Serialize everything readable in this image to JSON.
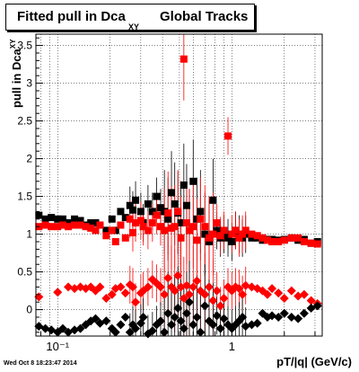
{
  "title": {
    "main": "Fitted pull in Dca",
    "subscript": "XY",
    "rest": "Global Tracks"
  },
  "axes": {
    "ylabel": "pull in Dca",
    "ylabel_sub": "XY",
    "xlabel": "pT/|q| (GeV/c)",
    "y_ticks": [
      "0",
      "0.5",
      "1",
      "1.5",
      "2",
      "2.5",
      "3",
      "3.5"
    ],
    "x_ticks": [
      "10⁻¹",
      "1"
    ]
  },
  "timestamp": "Wed Oct  8 18:23:47 2014",
  "colors": {
    "black_series": "#000000",
    "red_series": "#ff0000",
    "grid": "#000000"
  },
  "chart_data": {
    "type": "scatter",
    "x_scale": "log",
    "xlim": [
      0.075,
      3.3
    ],
    "ylim": [
      -0.35,
      3.65
    ],
    "grid": true,
    "series": [
      {
        "color": "#000000",
        "marker": "square",
        "points": [
          [
            0.078,
            1.25
          ],
          [
            0.085,
            1.2
          ],
          [
            0.092,
            1.22
          ],
          [
            0.1,
            1.2
          ],
          [
            0.107,
            1.2
          ],
          [
            0.115,
            1.15
          ],
          [
            0.125,
            1.2
          ],
          [
            0.135,
            1.18
          ],
          [
            0.145,
            1.12
          ],
          [
            0.155,
            1.15
          ],
          [
            0.165,
            1.15
          ],
          [
            0.175,
            1.12
          ],
          [
            0.19,
            1.05
          ],
          [
            0.205,
            1.2
          ],
          [
            0.215,
            1.05
          ],
          [
            0.23,
            1.3
          ],
          [
            0.245,
            1.22
          ],
          [
            0.26,
            1.38
          ],
          [
            0.27,
            1.32
          ],
          [
            0.28,
            1.45
          ],
          [
            0.3,
            1.3
          ],
          [
            0.31,
            1.15
          ],
          [
            0.33,
            1.4
          ],
          [
            0.35,
            1.3
          ],
          [
            0.37,
            1.5
          ],
          [
            0.39,
            1.35
          ],
          [
            0.41,
            1.3
          ],
          [
            0.43,
            1.2
          ],
          [
            0.45,
            1.55
          ],
          [
            0.47,
            1.4
          ],
          [
            0.49,
            1.28
          ],
          [
            0.51,
            1.15
          ],
          [
            0.53,
            1.65
          ],
          [
            0.55,
            1.38
          ],
          [
            0.57,
            1.05
          ],
          [
            0.6,
            1.7
          ],
          [
            0.63,
            1.2
          ],
          [
            0.66,
            1.3
          ],
          [
            0.7,
            1.0
          ],
          [
            0.74,
            0.9
          ],
          [
            0.78,
            1.45
          ],
          [
            0.82,
            1.05
          ],
          [
            0.86,
            0.95
          ],
          [
            0.9,
            1.0
          ],
          [
            0.95,
            0.95
          ],
          [
            1.0,
            0.9
          ],
          [
            1.05,
            1.05
          ],
          [
            1.1,
            1.0
          ],
          [
            1.15,
            0.95
          ],
          [
            1.2,
            1.0
          ],
          [
            1.3,
            0.95
          ],
          [
            1.4,
            0.95
          ],
          [
            1.5,
            0.92
          ],
          [
            1.6,
            0.93
          ],
          [
            1.7,
            0.93
          ],
          [
            1.85,
            0.92
          ],
          [
            2.0,
            0.93
          ],
          [
            2.2,
            0.95
          ],
          [
            2.4,
            0.92
          ],
          [
            2.6,
            0.93
          ],
          [
            2.85,
            0.88
          ],
          [
            3.1,
            0.9
          ]
        ]
      },
      {
        "color": "#ff0000",
        "marker": "square",
        "points": [
          [
            0.078,
            1.1
          ],
          [
            0.085,
            1.12
          ],
          [
            0.092,
            1.1
          ],
          [
            0.1,
            1.1
          ],
          [
            0.107,
            1.12
          ],
          [
            0.115,
            1.1
          ],
          [
            0.125,
            1.12
          ],
          [
            0.135,
            1.12
          ],
          [
            0.145,
            1.1
          ],
          [
            0.155,
            1.08
          ],
          [
            0.165,
            1.05
          ],
          [
            0.175,
            1.12
          ],
          [
            0.19,
            0.98
          ],
          [
            0.205,
            1.05
          ],
          [
            0.215,
            0.9
          ],
          [
            0.23,
            1.12
          ],
          [
            0.245,
            0.95
          ],
          [
            0.26,
            1.2
          ],
          [
            0.27,
            1.02
          ],
          [
            0.28,
            1.15
          ],
          [
            0.3,
            1.18
          ],
          [
            0.31,
            1.1
          ],
          [
            0.33,
            1.05
          ],
          [
            0.35,
            1.15
          ],
          [
            0.37,
            1.25
          ],
          [
            0.39,
            1.1
          ],
          [
            0.41,
            1.05
          ],
          [
            0.43,
            1.28
          ],
          [
            0.45,
            1.08
          ],
          [
            0.47,
            1.1
          ],
          [
            0.49,
            1.3
          ],
          [
            0.51,
            0.95
          ],
          [
            0.53,
            3.32
          ],
          [
            0.55,
            1.15
          ],
          [
            0.57,
            1.05
          ],
          [
            0.6,
            1.1
          ],
          [
            0.63,
            0.92
          ],
          [
            0.66,
            1.2
          ],
          [
            0.7,
            1.1
          ],
          [
            0.74,
            0.95
          ],
          [
            0.78,
            1.0
          ],
          [
            0.82,
            1.15
          ],
          [
            0.86,
            0.98
          ],
          [
            0.9,
            1.05
          ],
          [
            0.95,
            2.3
          ],
          [
            1.0,
            1.0
          ],
          [
            1.05,
            1.05
          ],
          [
            1.1,
            0.95
          ],
          [
            1.15,
            1.0
          ],
          [
            1.2,
            1.05
          ],
          [
            1.3,
            1.0
          ],
          [
            1.4,
            0.98
          ],
          [
            1.5,
            0.95
          ],
          [
            1.6,
            0.92
          ],
          [
            1.7,
            0.9
          ],
          [
            1.85,
            0.9
          ],
          [
            2.0,
            0.92
          ],
          [
            2.2,
            0.95
          ],
          [
            2.4,
            0.95
          ],
          [
            2.6,
            0.9
          ],
          [
            2.85,
            0.88
          ],
          [
            3.1,
            0.87
          ]
        ]
      },
      {
        "color": "#ff0000",
        "marker": "diamond",
        "points": [
          [
            0.078,
            0.17
          ],
          [
            0.1,
            0.23
          ],
          [
            0.115,
            0.3
          ],
          [
            0.125,
            0.28
          ],
          [
            0.135,
            0.3
          ],
          [
            0.145,
            0.28
          ],
          [
            0.155,
            0.3
          ],
          [
            0.165,
            0.25
          ],
          [
            0.175,
            0.3
          ],
          [
            0.19,
            0.15
          ],
          [
            0.205,
            0.2
          ],
          [
            0.215,
            0.28
          ],
          [
            0.23,
            0.3
          ],
          [
            0.245,
            0.22
          ],
          [
            0.26,
            0.33
          ],
          [
            0.27,
            0.3
          ],
          [
            0.28,
            0.1
          ],
          [
            0.3,
            0.22
          ],
          [
            0.31,
            0.25
          ],
          [
            0.33,
            0.3
          ],
          [
            0.35,
            0.4
          ],
          [
            0.37,
            0.35
          ],
          [
            0.39,
            0.3
          ],
          [
            0.41,
            0.2
          ],
          [
            0.43,
            0.42
          ],
          [
            0.45,
            0.3
          ],
          [
            0.47,
            0.25
          ],
          [
            0.49,
            0.45
          ],
          [
            0.51,
            0.3
          ],
          [
            0.53,
            0.15
          ],
          [
            0.55,
            0.32
          ],
          [
            0.57,
            0.2
          ],
          [
            0.6,
            0.3
          ],
          [
            0.63,
            0.38
          ],
          [
            0.66,
            0.25
          ],
          [
            0.7,
            0.2
          ],
          [
            0.74,
            0.3
          ],
          [
            0.78,
            0.12
          ],
          [
            0.82,
            0.25
          ],
          [
            0.86,
            0.05
          ],
          [
            0.9,
            0.15
          ],
          [
            0.95,
            0.3
          ],
          [
            1.0,
            0.25
          ],
          [
            1.05,
            0.3
          ],
          [
            1.1,
            0.28
          ],
          [
            1.15,
            0.2
          ],
          [
            1.2,
            0.32
          ],
          [
            1.3,
            0.3
          ],
          [
            1.4,
            0.28
          ],
          [
            1.5,
            0.25
          ],
          [
            1.6,
            0.2
          ],
          [
            1.7,
            0.28
          ],
          [
            1.85,
            0.22
          ],
          [
            2.0,
            0.15
          ],
          [
            2.2,
            0.25
          ],
          [
            2.4,
            0.18
          ],
          [
            2.6,
            0.2
          ],
          [
            2.85,
            0.12
          ],
          [
            3.1,
            0.08
          ]
        ]
      },
      {
        "color": "#000000",
        "marker": "diamond",
        "points": [
          [
            0.078,
            -0.22
          ],
          [
            0.085,
            -0.25
          ],
          [
            0.092,
            -0.27
          ],
          [
            0.1,
            -0.3
          ],
          [
            0.107,
            -0.25
          ],
          [
            0.115,
            -0.3
          ],
          [
            0.125,
            -0.27
          ],
          [
            0.135,
            -0.25
          ],
          [
            0.145,
            -0.2
          ],
          [
            0.155,
            -0.15
          ],
          [
            0.165,
            -0.12
          ],
          [
            0.175,
            -0.18
          ],
          [
            0.19,
            -0.15
          ],
          [
            0.205,
            -0.25
          ],
          [
            0.215,
            -0.3
          ],
          [
            0.23,
            -0.2
          ],
          [
            0.245,
            -0.1
          ],
          [
            0.26,
            -0.3
          ],
          [
            0.27,
            -0.2
          ],
          [
            0.28,
            -0.25
          ],
          [
            0.3,
            -0.18
          ],
          [
            0.31,
            -0.1
          ],
          [
            0.33,
            -0.32
          ],
          [
            0.35,
            -0.28
          ],
          [
            0.37,
            -0.2
          ],
          [
            0.39,
            -0.15
          ],
          [
            0.41,
            -0.3
          ],
          [
            0.43,
            -0.05
          ],
          [
            0.45,
            -0.2
          ],
          [
            0.47,
            -0.1
          ],
          [
            0.49,
            0.02
          ],
          [
            0.51,
            -0.15
          ],
          [
            0.53,
            -0.25
          ],
          [
            0.55,
            -0.05
          ],
          [
            0.57,
            0.1
          ],
          [
            0.6,
            -0.2
          ],
          [
            0.63,
            -0.1
          ],
          [
            0.66,
            -0.3
          ],
          [
            0.7,
            0.05
          ],
          [
            0.74,
            -0.15
          ],
          [
            0.78,
            -0.2
          ],
          [
            0.82,
            -0.08
          ],
          [
            0.86,
            -0.25
          ],
          [
            0.9,
            -0.12
          ],
          [
            0.95,
            -0.2
          ],
          [
            1.0,
            -0.25
          ],
          [
            1.05,
            -0.2
          ],
          [
            1.1,
            -0.15
          ],
          [
            1.15,
            -0.1
          ],
          [
            1.2,
            -0.22
          ],
          [
            1.3,
            -0.2
          ],
          [
            1.4,
            -0.18
          ],
          [
            1.5,
            -0.05
          ],
          [
            1.6,
            -0.1
          ],
          [
            1.7,
            -0.08
          ],
          [
            1.85,
            -0.1
          ],
          [
            2.0,
            -0.05
          ],
          [
            2.2,
            -0.1
          ],
          [
            2.4,
            -0.12
          ],
          [
            2.6,
            -0.05
          ],
          [
            2.85,
            0.02
          ],
          [
            3.1,
            0.05
          ]
        ]
      }
    ]
  }
}
